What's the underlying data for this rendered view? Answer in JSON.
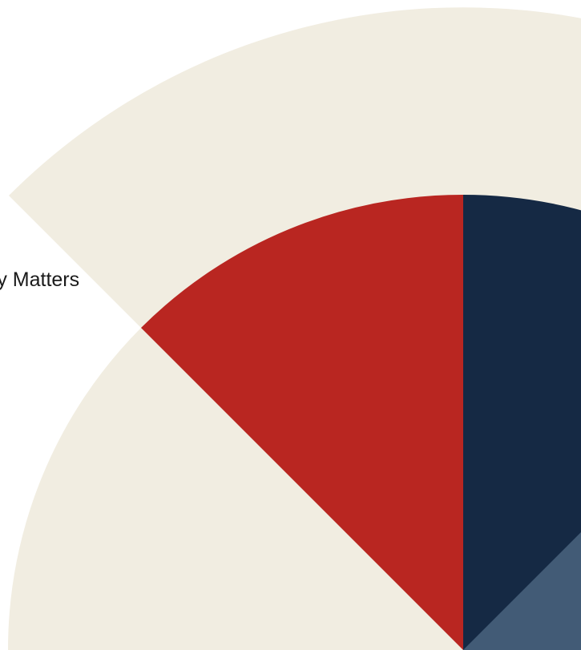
{
  "caption": {
    "text": "ry Matters"
  },
  "graphic": {
    "icon": "quarter-radial-fan-graphic",
    "colors": {
      "background": "#ffffff",
      "cream": "#f1ede1",
      "red": "#b92621",
      "navy": "#152944",
      "slate": "#425b76",
      "text": "#1a1a1a"
    }
  }
}
